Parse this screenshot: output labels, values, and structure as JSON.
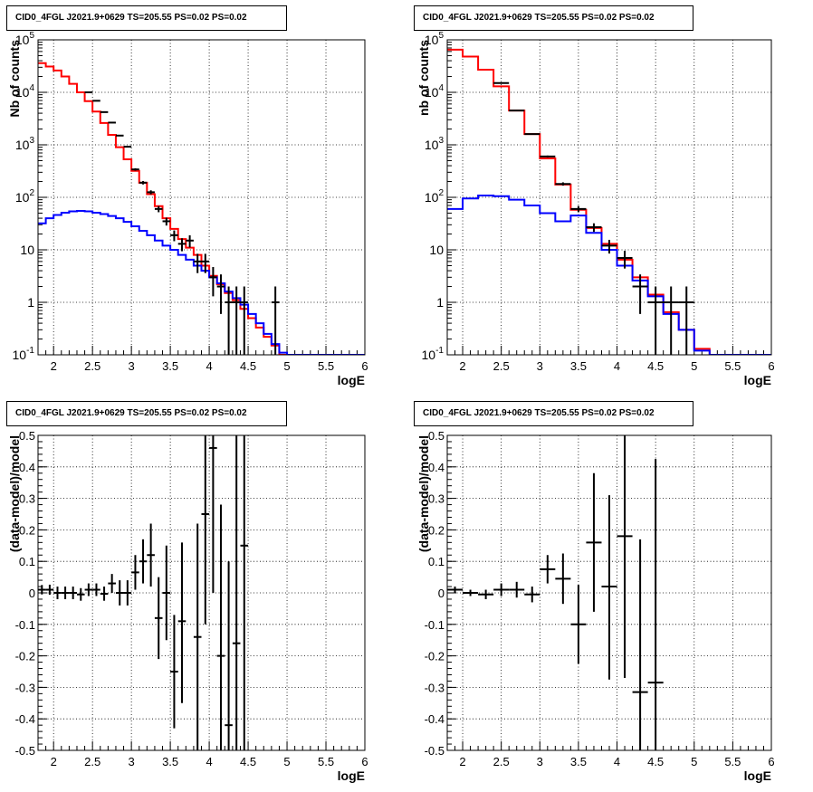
{
  "chart_data": [
    {
      "type": "line",
      "step": true,
      "title": "CID0_4FGL J2021.9+0629 TS=205.55 PS=0.02 PS=0.02",
      "xlabel": "logE",
      "ylabel": "Nb of counts",
      "log_y": true,
      "xlim": [
        1.8,
        6.0
      ],
      "ylim": [
        0.1,
        100000
      ],
      "grid": true,
      "x_ticks": [
        "2",
        "2.5",
        "3",
        "3.5",
        "4",
        "4.5",
        "5",
        "5.5",
        "6"
      ],
      "y_ticks": [
        "10^-1",
        "1",
        "10",
        "10^2",
        "10^3",
        "10^4",
        "10^5"
      ],
      "bin_width": 0.1,
      "series": [
        {
          "color": "#ff0000",
          "bin_edges": [
            1.8,
            1.9,
            2.0,
            2.1,
            2.2,
            2.3,
            2.4,
            2.5,
            2.6,
            2.7,
            2.8,
            2.9,
            3.0,
            3.1,
            3.2,
            3.3,
            3.4,
            3.5,
            3.6,
            3.7,
            3.8,
            3.9,
            4.0,
            4.1,
            4.2,
            4.3,
            4.4,
            4.5,
            4.6,
            4.7,
            4.8,
            4.9,
            5.0,
            5.1,
            5.2,
            5.3,
            5.4,
            5.5,
            5.6,
            5.7,
            5.8,
            5.9,
            6.0
          ],
          "values": [
            36000,
            31000,
            26000,
            20000,
            14500,
            10000,
            6800,
            4300,
            2600,
            1550,
            900,
            530,
            320,
            190,
            115,
            68,
            40,
            25,
            16,
            11,
            8,
            5,
            3.2,
            2.2,
            1.5,
            1.1,
            0.75,
            0.5,
            0.33,
            0.22,
            0.15,
            0.1,
            0.1,
            0.1,
            0.1,
            0.1,
            0.1,
            0.1,
            0.1,
            0.1,
            0.1,
            0.1
          ]
        },
        {
          "color": "#0000ff",
          "bin_edges": [
            1.8,
            1.9,
            2.0,
            2.1,
            2.2,
            2.3,
            2.4,
            2.5,
            2.6,
            2.7,
            2.8,
            2.9,
            3.0,
            3.1,
            3.2,
            3.3,
            3.4,
            3.5,
            3.6,
            3.7,
            3.8,
            3.9,
            4.0,
            4.1,
            4.2,
            4.3,
            4.4,
            4.5,
            4.6,
            4.7,
            4.8,
            4.9,
            5.0,
            5.1,
            5.2,
            5.3,
            5.4,
            5.5,
            5.6,
            5.7,
            5.8,
            5.9,
            6.0
          ],
          "values": [
            32,
            40,
            46,
            51,
            54,
            55,
            54,
            51,
            48,
            44,
            40,
            34,
            28,
            23,
            19,
            15,
            12,
            10,
            8,
            6.5,
            5,
            4,
            3,
            2.3,
            1.6,
            1.2,
            0.9,
            0.6,
            0.4,
            0.25,
            0.16,
            0.11,
            0.1,
            0.1,
            0.1,
            0.1,
            0.1,
            0.1,
            0.1,
            0.1,
            0.1,
            0.1
          ]
        }
      ],
      "data_points": {
        "color": "#000000",
        "points": [
          {
            "x": 2.45,
            "y": 10000,
            "ylo": 9900,
            "yhi": 10100
          },
          {
            "x": 2.55,
            "y": 6900,
            "ylo": 6820,
            "yhi": 6980
          },
          {
            "x": 2.65,
            "y": 4200,
            "ylo": 4135,
            "yhi": 4265
          },
          {
            "x": 2.75,
            "y": 2650,
            "ylo": 2600,
            "yhi": 2700
          },
          {
            "x": 2.85,
            "y": 1500,
            "ylo": 1460,
            "yhi": 1540
          },
          {
            "x": 2.95,
            "y": 920,
            "ylo": 890,
            "yhi": 950
          },
          {
            "x": 3.05,
            "y": 340,
            "ylo": 322,
            "yhi": 358
          },
          {
            "x": 3.15,
            "y": 190,
            "ylo": 176,
            "yhi": 204
          },
          {
            "x": 3.25,
            "y": 125,
            "ylo": 114,
            "yhi": 136
          },
          {
            "x": 3.35,
            "y": 60,
            "ylo": 52,
            "yhi": 68
          },
          {
            "x": 3.45,
            "y": 35,
            "ylo": 29,
            "yhi": 41
          },
          {
            "x": 3.55,
            "y": 19,
            "ylo": 14.6,
            "yhi": 23.4
          },
          {
            "x": 3.65,
            "y": 13,
            "ylo": 9.4,
            "yhi": 16.6
          },
          {
            "x": 3.75,
            "y": 15,
            "ylo": 11.1,
            "yhi": 18.9
          },
          {
            "x": 3.85,
            "y": 6,
            "ylo": 3.6,
            "yhi": 8.4
          },
          {
            "x": 3.95,
            "y": 6,
            "ylo": 3.6,
            "yhi": 8.4
          },
          {
            "x": 4.05,
            "y": 3,
            "ylo": 1.3,
            "yhi": 4.7
          },
          {
            "x": 4.15,
            "y": 2,
            "ylo": 0.6,
            "yhi": 3.4
          },
          {
            "x": 4.25,
            "y": 1,
            "ylo": 0.1,
            "yhi": 2
          },
          {
            "x": 4.35,
            "y": 1,
            "ylo": 0.1,
            "yhi": 2
          },
          {
            "x": 4.45,
            "y": 1,
            "ylo": 0.1,
            "yhi": 2
          },
          {
            "x": 4.85,
            "y": 1,
            "ylo": 0.1,
            "yhi": 2
          }
        ]
      }
    },
    {
      "type": "line",
      "step": true,
      "title": "CID0_4FGL J2021.9+0629 TS=205.55 PS=0.02 PS=0.02",
      "xlabel": "logE",
      "ylabel": "nb of counts",
      "log_y": true,
      "xlim": [
        1.8,
        6.0
      ],
      "ylim": [
        0.1,
        100000
      ],
      "grid": true,
      "x_ticks": [
        "2",
        "2.5",
        "3",
        "3.5",
        "4",
        "4.5",
        "5",
        "5.5",
        "6"
      ],
      "y_ticks": [
        "10^-1",
        "1",
        "10",
        "10^2",
        "10^3",
        "10^4",
        "10^5"
      ],
      "bin_width": 0.2,
      "series": [
        {
          "color": "#ff0000",
          "bin_edges": [
            1.8,
            2.0,
            2.2,
            2.4,
            2.6,
            2.8,
            3.0,
            3.2,
            3.4,
            3.6,
            3.8,
            4.0,
            4.2,
            4.4,
            4.6,
            4.8,
            5.0,
            5.2,
            5.4,
            5.6,
            5.8,
            6.0
          ],
          "values": [
            65000,
            48000,
            27000,
            13000,
            4500,
            1600,
            550,
            175,
            58,
            26,
            13,
            6.5,
            3,
            1.4,
            0.65,
            0.3,
            0.13,
            0.1,
            0.1,
            0.1,
            0.1
          ]
        },
        {
          "color": "#0000ff",
          "bin_edges": [
            1.8,
            2.0,
            2.2,
            2.4,
            2.6,
            2.8,
            3.0,
            3.2,
            3.4,
            3.6,
            3.8,
            4.0,
            4.2,
            4.4,
            4.6,
            4.8,
            5.0,
            5.2,
            5.4,
            5.6,
            5.8,
            6.0
          ],
          "values": [
            60,
            95,
            108,
            105,
            90,
            70,
            50,
            35,
            45,
            21,
            10,
            5,
            2.6,
            1.3,
            0.6,
            0.3,
            0.12,
            0.1,
            0.1,
            0.1,
            0.1
          ]
        }
      ],
      "data_points": {
        "color": "#000000",
        "points": [
          {
            "x": 2.5,
            "y": 15000,
            "ylo": 14880,
            "yhi": 15120
          },
          {
            "x": 2.7,
            "y": 4500,
            "ylo": 4435,
            "yhi": 4565
          },
          {
            "x": 2.9,
            "y": 1600,
            "ylo": 1560,
            "yhi": 1640
          },
          {
            "x": 3.1,
            "y": 600,
            "ylo": 575,
            "yhi": 625
          },
          {
            "x": 3.3,
            "y": 180,
            "ylo": 167,
            "yhi": 193
          },
          {
            "x": 3.5,
            "y": 60,
            "ylo": 52,
            "yhi": 68
          },
          {
            "x": 3.7,
            "y": 27,
            "ylo": 22,
            "yhi": 32
          },
          {
            "x": 3.9,
            "y": 12,
            "ylo": 8.5,
            "yhi": 15.5
          },
          {
            "x": 4.1,
            "y": 7,
            "ylo": 4.4,
            "yhi": 9.6
          },
          {
            "x": 4.3,
            "y": 2,
            "ylo": 0.6,
            "yhi": 3.4
          },
          {
            "x": 4.5,
            "y": 1,
            "ylo": 0.1,
            "yhi": 2
          },
          {
            "x": 4.7,
            "y": 1,
            "ylo": 0.1,
            "yhi": 2
          },
          {
            "x": 4.9,
            "y": 1,
            "ylo": 0.1,
            "yhi": 2
          }
        ]
      }
    },
    {
      "type": "scatter",
      "title": "CID0_4FGL J2021.9+0629 TS=205.55 PS=0.02 PS=0.02",
      "xlabel": "logE",
      "ylabel": "(data-model)/model",
      "xlim": [
        1.8,
        6.0
      ],
      "ylim": [
        -0.5,
        0.5
      ],
      "grid": true,
      "x_ticks": [
        "2",
        "2.5",
        "3",
        "3.5",
        "4",
        "4.5",
        "5",
        "5.5",
        "6"
      ],
      "y_ticks": [
        "-0.5",
        "-0.4",
        "-0.3",
        "-0.2",
        "-0.1",
        "0",
        "0.1",
        "0.2",
        "0.3",
        "0.4",
        "0.5"
      ],
      "x_half_width": 0.05,
      "points": [
        {
          "x": 1.85,
          "y": 0.01,
          "ylo": -0.005,
          "yhi": 0.025
        },
        {
          "x": 1.95,
          "y": 0.01,
          "ylo": -0.006,
          "yhi": 0.026
        },
        {
          "x": 2.05,
          "y": 0.0,
          "ylo": -0.02,
          "yhi": 0.02
        },
        {
          "x": 2.15,
          "y": 0.0,
          "ylo": -0.02,
          "yhi": 0.02
        },
        {
          "x": 2.25,
          "y": 0.0,
          "ylo": -0.02,
          "yhi": 0.02
        },
        {
          "x": 2.35,
          "y": -0.005,
          "ylo": -0.025,
          "yhi": 0.015
        },
        {
          "x": 2.45,
          "y": 0.01,
          "ylo": -0.01,
          "yhi": 0.03
        },
        {
          "x": 2.55,
          "y": 0.01,
          "ylo": -0.01,
          "yhi": 0.03
        },
        {
          "x": 2.65,
          "y": -0.003,
          "ylo": -0.025,
          "yhi": 0.02
        },
        {
          "x": 2.75,
          "y": 0.03,
          "ylo": 0.0,
          "yhi": 0.06
        },
        {
          "x": 2.85,
          "y": 0.0,
          "ylo": -0.04,
          "yhi": 0.04
        },
        {
          "x": 2.95,
          "y": 0.0,
          "ylo": -0.04,
          "yhi": 0.04
        },
        {
          "x": 3.05,
          "y": 0.065,
          "ylo": 0.01,
          "yhi": 0.12
        },
        {
          "x": 3.15,
          "y": 0.1,
          "ylo": 0.03,
          "yhi": 0.17
        },
        {
          "x": 3.25,
          "y": 0.12,
          "ylo": 0.02,
          "yhi": 0.22
        },
        {
          "x": 3.35,
          "y": -0.08,
          "ylo": -0.21,
          "yhi": 0.05
        },
        {
          "x": 3.45,
          "y": 0.0,
          "ylo": -0.15,
          "yhi": 0.15
        },
        {
          "x": 3.55,
          "y": -0.25,
          "ylo": -0.43,
          "yhi": -0.07
        },
        {
          "x": 3.65,
          "y": -0.09,
          "ylo": -0.35,
          "yhi": 0.16
        },
        {
          "x": 3.85,
          "y": -0.14,
          "ylo": -0.5,
          "yhi": 0.22
        },
        {
          "x": 3.95,
          "y": 0.25,
          "ylo": -0.1,
          "yhi": 0.5
        },
        {
          "x": 4.05,
          "y": 0.46,
          "ylo": 0.0,
          "yhi": 0.5
        },
        {
          "x": 4.15,
          "y": -0.2,
          "ylo": -0.5,
          "yhi": 0.28
        },
        {
          "x": 4.25,
          "y": -0.42,
          "ylo": -0.5,
          "yhi": 0.1
        },
        {
          "x": 4.35,
          "y": -0.16,
          "ylo": -0.5,
          "yhi": 0.5
        },
        {
          "x": 4.45,
          "y": 0.15,
          "ylo": -0.5,
          "yhi": 0.5
        }
      ]
    },
    {
      "type": "scatter",
      "title": "CID0_4FGL J2021.9+0629 TS=205.55 PS=0.02 PS=0.02",
      "xlabel": "logE",
      "ylabel": "(data-model)/model",
      "xlim": [
        1.8,
        6.0
      ],
      "ylim": [
        -0.5,
        0.5
      ],
      "grid": true,
      "x_ticks": [
        "2",
        "2.5",
        "3",
        "3.5",
        "4",
        "4.5",
        "5",
        "5.5",
        "6"
      ],
      "y_ticks": [
        "-0.5",
        "-0.4",
        "-0.3",
        "-0.2",
        "-0.1",
        "0",
        "0.1",
        "0.2",
        "0.3",
        "0.4",
        "0.5"
      ],
      "x_half_width": 0.1,
      "points": [
        {
          "x": 1.9,
          "y": 0.01,
          "ylo": 0.0,
          "yhi": 0.02
        },
        {
          "x": 2.1,
          "y": 0.0,
          "ylo": -0.01,
          "yhi": 0.01
        },
        {
          "x": 2.3,
          "y": -0.005,
          "ylo": -0.02,
          "yhi": 0.01
        },
        {
          "x": 2.5,
          "y": 0.01,
          "ylo": -0.01,
          "yhi": 0.03
        },
        {
          "x": 2.7,
          "y": 0.01,
          "ylo": -0.015,
          "yhi": 0.035
        },
        {
          "x": 2.9,
          "y": -0.005,
          "ylo": -0.03,
          "yhi": 0.02
        },
        {
          "x": 3.1,
          "y": 0.075,
          "ylo": 0.03,
          "yhi": 0.12
        },
        {
          "x": 3.3,
          "y": 0.045,
          "ylo": -0.035,
          "yhi": 0.125
        },
        {
          "x": 3.5,
          "y": -0.1,
          "ylo": -0.225,
          "yhi": 0.025
        },
        {
          "x": 3.7,
          "y": 0.16,
          "ylo": -0.06,
          "yhi": 0.38
        },
        {
          "x": 3.9,
          "y": 0.02,
          "ylo": -0.275,
          "yhi": 0.31
        },
        {
          "x": 4.1,
          "y": 0.18,
          "ylo": -0.27,
          "yhi": 0.5
        },
        {
          "x": 4.3,
          "y": -0.315,
          "ylo": -0.5,
          "yhi": 0.17
        },
        {
          "x": 4.5,
          "y": -0.285,
          "ylo": -0.5,
          "yhi": 0.425
        }
      ]
    }
  ]
}
